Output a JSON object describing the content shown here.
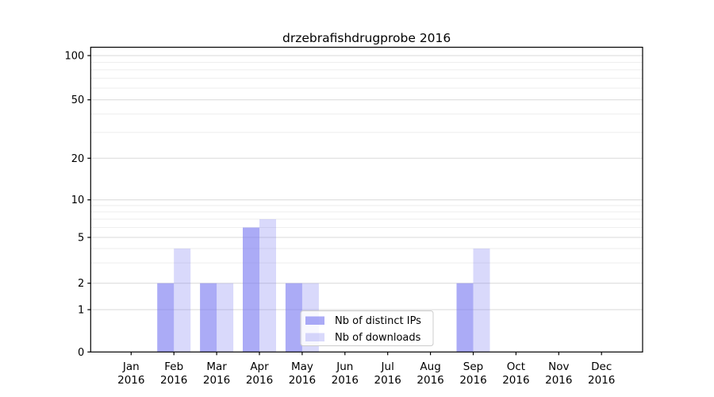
{
  "chart_data": {
    "type": "bar",
    "title": "drzebrafishdrugprobe 2016",
    "categories": [
      "Jan",
      "Feb",
      "Mar",
      "Apr",
      "May",
      "Jun",
      "Jul",
      "Aug",
      "Sep",
      "Oct",
      "Nov",
      "Dec"
    ],
    "year_label": "2016",
    "series": [
      {
        "name": "Nb of distinct IPs",
        "color": "rgba(120,120,240,0.62)",
        "values": [
          0,
          2,
          2,
          6,
          2,
          0,
          0,
          0,
          2,
          0,
          0,
          0
        ]
      },
      {
        "name": "Nb of downloads",
        "color": "rgba(120,120,240,0.28)",
        "values": [
          0,
          4,
          2,
          7,
          2,
          0,
          0,
          0,
          4,
          0,
          0,
          0
        ]
      }
    ],
    "yticks": [
      0,
      1,
      2,
      5,
      10,
      20,
      50,
      100
    ],
    "minor_yticks": [
      3,
      4,
      6,
      7,
      8,
      9,
      30,
      40,
      60,
      70,
      80,
      90
    ],
    "ylim": [
      0,
      100
    ],
    "yscale": "log-like with 0 baseline",
    "xlabel": "",
    "ylabel": "",
    "grid": "horizontal major and minor",
    "legend_position": "inside lower center"
  },
  "colors": {
    "background": "#ffffff",
    "bar_distinct_ips_rendered": "#a9a9f6",
    "bar_downloads_rendered": "#dbdbf9",
    "grid_major": "#d9d9d9",
    "grid_minor": "#eeeeee",
    "axis": "#000000",
    "legend_border": "#cccccc",
    "legend_background": "rgba(255,255,255,0.8)"
  }
}
